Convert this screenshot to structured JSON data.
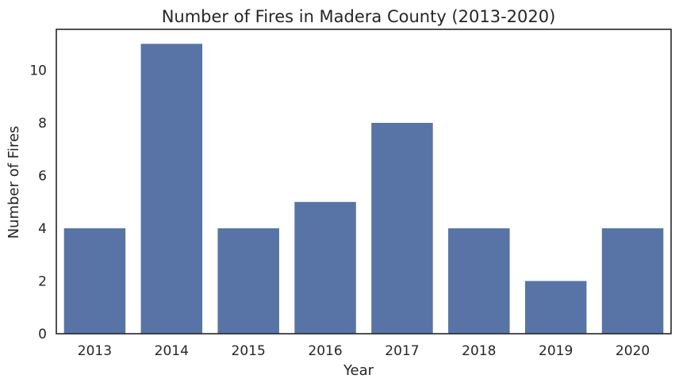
{
  "chart_data": {
    "type": "bar",
    "title": "Number of Fires in Madera County (2013-2020)",
    "xlabel": "Year",
    "ylabel": "Number of Fires",
    "categories": [
      "2013",
      "2014",
      "2015",
      "2016",
      "2017",
      "2018",
      "2019",
      "2020"
    ],
    "values": [
      4,
      11,
      4,
      5,
      8,
      4,
      2,
      4
    ],
    "ylim": [
      0,
      11.55
    ],
    "yticks": [
      0,
      2,
      4,
      6,
      8,
      10
    ],
    "grid": false,
    "legend": "none",
    "colors": {
      "bar": "#5874a6",
      "axis": "#262626",
      "background": "#ffffff"
    }
  }
}
